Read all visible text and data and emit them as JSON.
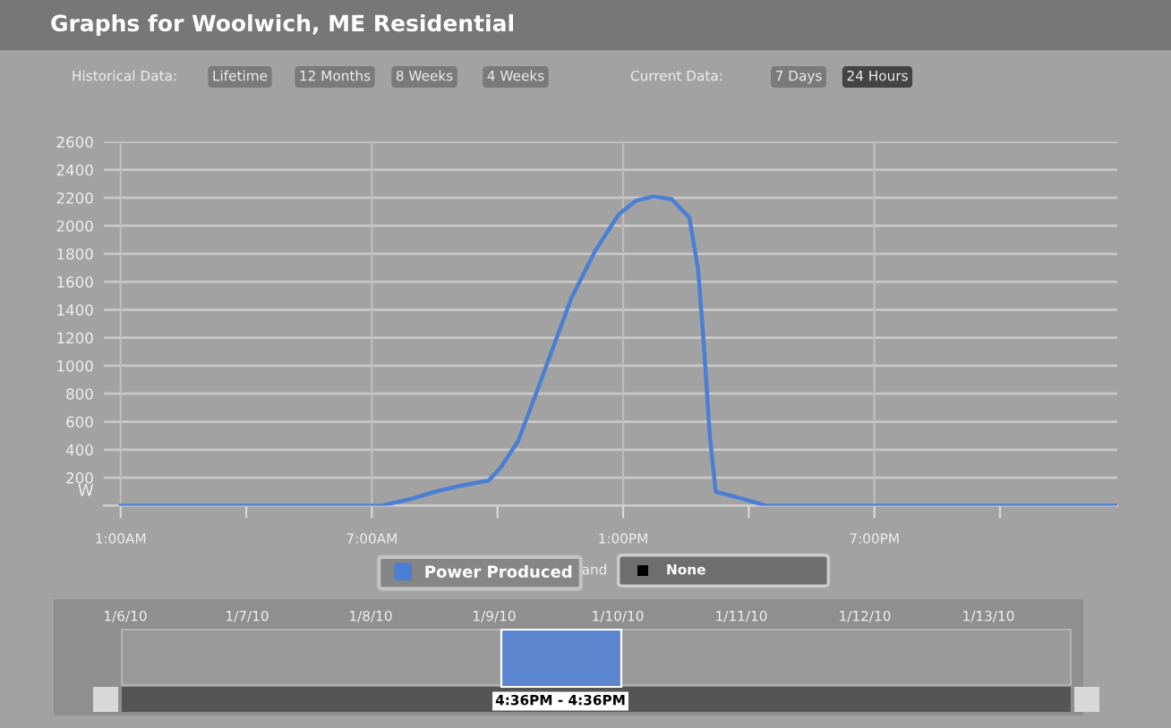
{
  "chart_data": {
    "type": "line",
    "title": "Graphs for Woolwich, ME Residential",
    "ylabel": "W",
    "annotations": [
      "Historical Data:",
      "Lifetime",
      "12 Months",
      "8 Weeks",
      "4 Weeks",
      "Current Data:",
      "7 Days",
      "24 Hours",
      "and",
      "None",
      "1/6/10",
      "1/7/10",
      "1/8/10",
      "1/9/10",
      "1/10/10",
      "1/11/10",
      "1/12/10",
      "1/13/10",
      "4:36PM - 4:36PM"
    ],
    "series": [
      {
        "name": "Power Produced",
        "color": "#4a7fd4",
        "x": [
          1,
          7.24,
          7.95,
          8.51,
          9.08,
          9.79,
          10.07,
          10.49,
          10.92,
          11.34,
          11.76,
          12.33,
          12.89,
          13.31,
          13.73,
          14.16,
          14.58,
          14.79,
          14.93,
          15.07,
          15.21,
          15.85,
          16.41,
          24.77
        ],
        "values": [
          0,
          0,
          50,
          100,
          140,
          180,
          270,
          460,
          800,
          1140,
          1480,
          1820,
          2080,
          2180,
          2210,
          2190,
          2060,
          1690,
          1140,
          500,
          100,
          50,
          0,
          0
        ]
      }
    ],
    "xlim": [
      0.6,
      24.8
    ],
    "xticks": [
      {
        "value": 1,
        "label": "1:00AM"
      },
      {
        "value": 4,
        "label": null
      },
      {
        "value": 7,
        "label": "7:00AM"
      },
      {
        "value": 10,
        "label": null
      },
      {
        "value": 13,
        "label": "1:00PM"
      },
      {
        "value": 16,
        "label": null
      },
      {
        "value": 19,
        "label": "7:00PM"
      },
      {
        "value": 22,
        "label": null
      }
    ],
    "ylim": [
      0,
      2600
    ],
    "yticks": [
      {
        "value": 0,
        "label": null
      },
      200,
      400,
      600,
      800,
      1000,
      1200,
      1400,
      1600,
      1800,
      2000,
      2200,
      2400,
      2600
    ],
    "grid": true,
    "legend": "bottom",
    "marker": "none",
    "line_style": "solid"
  }
}
